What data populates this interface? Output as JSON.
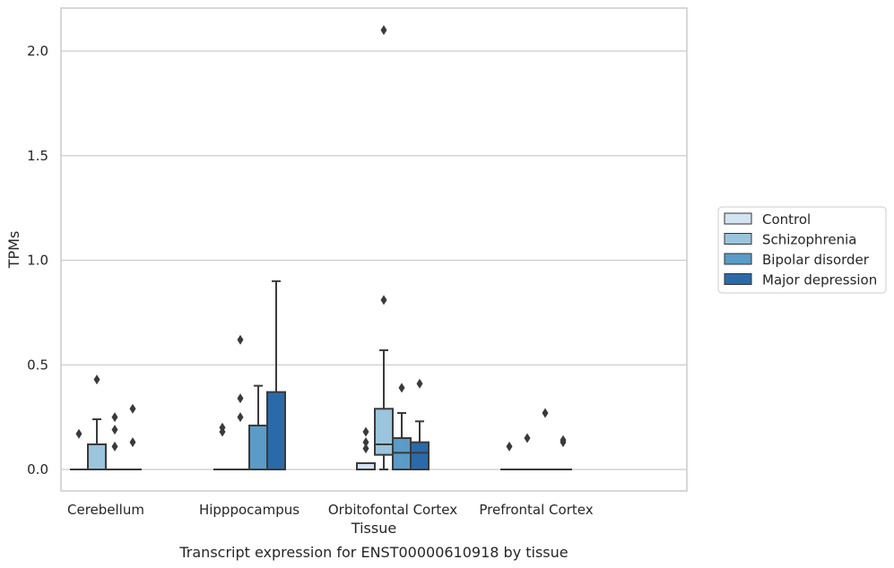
{
  "caption": "Transcript expression for ENST00000610918 by tissue",
  "chart_data": {
    "type": "box",
    "xlabel": "Tissue",
    "ylabel": "TPMs",
    "ylim": [
      -0.1,
      2.22
    ],
    "yticks": [
      0.0,
      0.5,
      1.0,
      1.5,
      2.0
    ],
    "ytick_labels": [
      "0.0",
      "0.5",
      "1.0",
      "1.5",
      "2.0"
    ],
    "grid": "horizontal",
    "legend_position": "right",
    "categories": [
      "Cerebellum",
      "Hipppocampus",
      "Orbitofontal Cortex",
      "Prefrontal Cortex"
    ],
    "series": [
      {
        "name": "Control",
        "color": "#d4e3f1",
        "boxes": [
          {
            "q1": 0,
            "median": 0,
            "q3": 0,
            "whisker_low": 0,
            "whisker_high": 0,
            "outliers": [
              0.17
            ]
          },
          {
            "q1": 0,
            "median": 0,
            "q3": 0,
            "whisker_low": 0,
            "whisker_high": 0,
            "outliers": [
              0.18,
              0.2
            ]
          },
          {
            "q1": 0,
            "median": 0,
            "q3": 0.03,
            "whisker_low": 0,
            "whisker_high": 0.03,
            "outliers": [
              0.1,
              0.13,
              0.18
            ]
          },
          {
            "q1": 0,
            "median": 0,
            "q3": 0,
            "whisker_low": 0,
            "whisker_high": 0,
            "outliers": [
              0.11
            ]
          }
        ]
      },
      {
        "name": "Schizophrenia",
        "color": "#9bc4dd",
        "boxes": [
          {
            "q1": 0,
            "median": 0,
            "q3": 0.12,
            "whisker_low": 0,
            "whisker_high": 0.24,
            "outliers": [
              0.43
            ]
          },
          {
            "q1": 0,
            "median": 0,
            "q3": 0,
            "whisker_low": 0,
            "whisker_high": 0,
            "outliers": [
              0.25,
              0.34,
              0.62
            ]
          },
          {
            "q1": 0.07,
            "median": 0.12,
            "q3": 0.29,
            "whisker_low": 0,
            "whisker_high": 0.57,
            "outliers": [
              0.81,
              2.1
            ]
          },
          {
            "q1": 0,
            "median": 0,
            "q3": 0,
            "whisker_low": 0,
            "whisker_high": 0,
            "outliers": [
              0.15
            ]
          }
        ]
      },
      {
        "name": "Bipolar disorder",
        "color": "#5a9bc7",
        "boxes": [
          {
            "q1": 0,
            "median": 0,
            "q3": 0,
            "whisker_low": 0,
            "whisker_high": 0,
            "outliers": [
              0.11,
              0.19,
              0.25
            ]
          },
          {
            "q1": 0,
            "median": 0,
            "q3": 0.21,
            "whisker_low": 0,
            "whisker_high": 0.4,
            "outliers": []
          },
          {
            "q1": 0,
            "median": 0.08,
            "q3": 0.15,
            "whisker_low": 0,
            "whisker_high": 0.27,
            "outliers": [
              0.39
            ]
          },
          {
            "q1": 0,
            "median": 0,
            "q3": 0,
            "whisker_low": 0,
            "whisker_high": 0,
            "outliers": [
              0.27
            ]
          }
        ]
      },
      {
        "name": "Major depression",
        "color": "#2b6aa8",
        "boxes": [
          {
            "q1": 0,
            "median": 0,
            "q3": 0,
            "whisker_low": 0,
            "whisker_high": 0,
            "outliers": [
              0.13,
              0.29
            ]
          },
          {
            "q1": 0,
            "median": 0,
            "q3": 0.37,
            "whisker_low": 0,
            "whisker_high": 0.9,
            "outliers": []
          },
          {
            "q1": 0,
            "median": 0.08,
            "q3": 0.13,
            "whisker_low": 0,
            "whisker_high": 0.23,
            "outliers": [
              0.41
            ]
          },
          {
            "q1": 0,
            "median": 0,
            "q3": 0,
            "whisker_low": 0,
            "whisker_high": 0,
            "outliers": [
              0.13,
              0.14
            ]
          }
        ]
      }
    ]
  }
}
